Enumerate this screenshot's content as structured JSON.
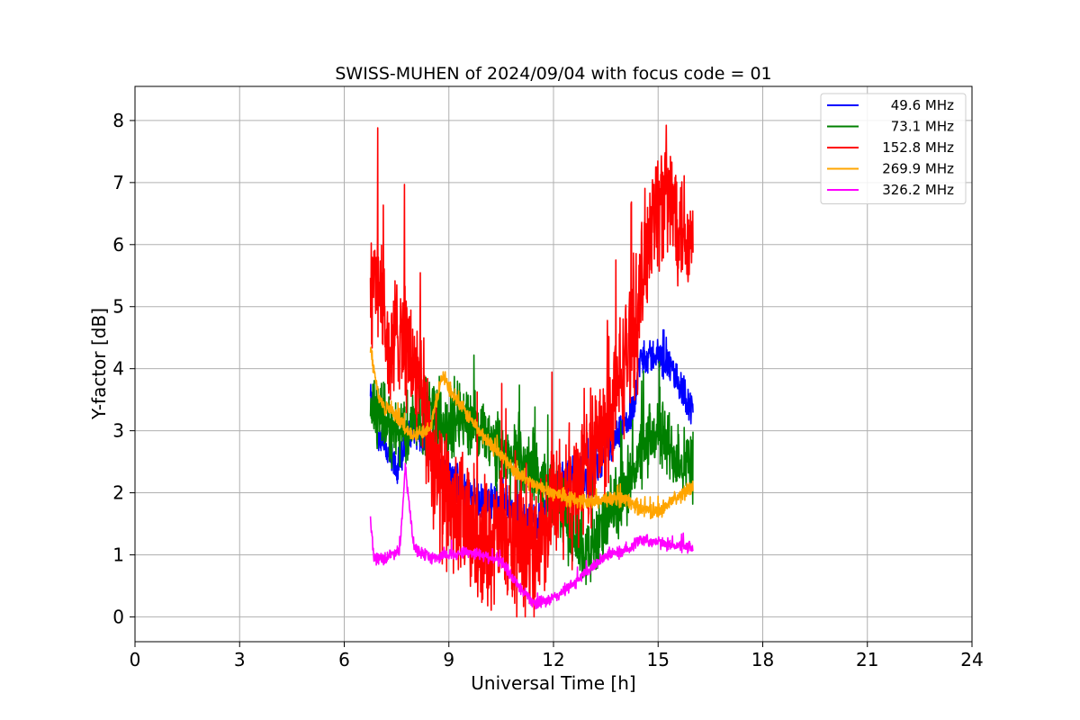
{
  "chart_data": {
    "type": "line",
    "title": "SWISS-MUHEN of 2024/09/04 with focus code = 01",
    "xlabel": "Universal Time [h]",
    "ylabel": "Y-factor [dB]",
    "xlim": [
      0,
      24
    ],
    "ylim": [
      -0.4,
      8.55
    ],
    "xticks": [
      0,
      3,
      6,
      9,
      12,
      15,
      18,
      21,
      24
    ],
    "yticks": [
      0,
      1,
      2,
      3,
      4,
      5,
      6,
      7,
      8
    ],
    "grid": true,
    "legend_position": "top-right",
    "series": [
      {
        "name": "49.6 MHz",
        "color": "#0000ff",
        "anchors": [
          [
            6.75,
            3.5
          ],
          [
            7.0,
            2.9
          ],
          [
            7.5,
            2.35
          ],
          [
            8.0,
            3.1
          ],
          [
            8.5,
            2.6
          ],
          [
            9.0,
            2.3
          ],
          [
            9.5,
            2.0
          ],
          [
            10.0,
            1.8
          ],
          [
            10.5,
            1.9
          ],
          [
            11.0,
            1.6
          ],
          [
            11.5,
            1.5
          ],
          [
            12.0,
            2.0
          ],
          [
            12.5,
            2.4
          ],
          [
            13.0,
            2.2
          ],
          [
            13.5,
            2.6
          ],
          [
            14.0,
            3.0
          ],
          [
            14.3,
            3.4
          ],
          [
            14.5,
            4.2
          ],
          [
            15.0,
            4.2
          ],
          [
            15.5,
            3.9
          ],
          [
            16.0,
            3.3
          ]
        ],
        "amplitude": 0.35
      },
      {
        "name": "73.1 MHz",
        "color": "#008000",
        "anchors": [
          [
            6.75,
            3.4
          ],
          [
            7.2,
            3.1
          ],
          [
            7.6,
            2.9
          ],
          [
            8.0,
            3.2
          ],
          [
            8.5,
            3.3
          ],
          [
            9.0,
            3.0
          ],
          [
            9.3,
            3.3
          ],
          [
            9.8,
            3.0
          ],
          [
            10.2,
            2.8
          ],
          [
            10.6,
            2.6
          ],
          [
            11.0,
            2.5
          ],
          [
            11.5,
            2.3
          ],
          [
            12.0,
            2.0
          ],
          [
            12.5,
            1.4
          ],
          [
            13.0,
            1.0
          ],
          [
            13.5,
            1.5
          ],
          [
            14.0,
            2.0
          ],
          [
            14.5,
            2.6
          ],
          [
            15.0,
            3.0
          ],
          [
            15.5,
            2.6
          ],
          [
            16.0,
            2.4
          ]
        ],
        "amplitude": 0.7
      },
      {
        "name": "152.8 MHz",
        "color": "#ff0000",
        "anchors": [
          [
            6.75,
            5.2
          ],
          [
            7.0,
            5.5
          ],
          [
            7.3,
            4.0
          ],
          [
            7.6,
            4.8
          ],
          [
            8.0,
            4.0
          ],
          [
            8.4,
            3.0
          ],
          [
            8.8,
            2.0
          ],
          [
            9.2,
            1.7
          ],
          [
            9.6,
            1.4
          ],
          [
            10.0,
            1.2
          ],
          [
            10.5,
            1.3
          ],
          [
            11.0,
            1.0
          ],
          [
            11.5,
            1.2
          ],
          [
            12.0,
            1.7
          ],
          [
            12.5,
            2.0
          ],
          [
            13.0,
            2.5
          ],
          [
            13.5,
            3.0
          ],
          [
            14.0,
            4.0
          ],
          [
            14.4,
            4.8
          ],
          [
            14.8,
            6.5
          ],
          [
            15.2,
            6.8
          ],
          [
            15.6,
            6.5
          ],
          [
            16.0,
            5.9
          ]
        ],
        "amplitude": 1.3
      },
      {
        "name": "269.9 MHz",
        "color": "#ffa500",
        "anchors": [
          [
            6.75,
            4.3
          ],
          [
            7.0,
            3.5
          ],
          [
            7.5,
            3.2
          ],
          [
            8.0,
            2.9
          ],
          [
            8.5,
            3.1
          ],
          [
            8.8,
            3.9
          ],
          [
            9.2,
            3.5
          ],
          [
            9.6,
            3.2
          ],
          [
            10.0,
            2.9
          ],
          [
            10.5,
            2.6
          ],
          [
            11.0,
            2.3
          ],
          [
            11.5,
            2.1
          ],
          [
            12.0,
            2.0
          ],
          [
            12.5,
            1.9
          ],
          [
            13.0,
            1.85
          ],
          [
            13.5,
            1.9
          ],
          [
            14.0,
            1.9
          ],
          [
            14.5,
            1.75
          ],
          [
            15.0,
            1.7
          ],
          [
            15.5,
            1.9
          ],
          [
            16.0,
            2.1
          ]
        ],
        "amplitude": 0.15
      },
      {
        "name": "326.2 MHz",
        "color": "#ff00ff",
        "anchors": [
          [
            6.75,
            1.6
          ],
          [
            6.85,
            0.95
          ],
          [
            7.2,
            0.95
          ],
          [
            7.6,
            1.1
          ],
          [
            7.75,
            2.4
          ],
          [
            8.0,
            1.1
          ],
          [
            8.5,
            0.95
          ],
          [
            9.0,
            1.0
          ],
          [
            9.5,
            1.05
          ],
          [
            10.0,
            1.0
          ],
          [
            10.5,
            0.9
          ],
          [
            11.0,
            0.5
          ],
          [
            11.5,
            0.2
          ],
          [
            12.0,
            0.3
          ],
          [
            12.5,
            0.5
          ],
          [
            13.0,
            0.75
          ],
          [
            13.5,
            1.0
          ],
          [
            14.0,
            1.05
          ],
          [
            14.5,
            1.25
          ],
          [
            15.0,
            1.2
          ],
          [
            15.5,
            1.15
          ],
          [
            16.0,
            1.1
          ]
        ],
        "amplitude": 0.12
      }
    ]
  }
}
